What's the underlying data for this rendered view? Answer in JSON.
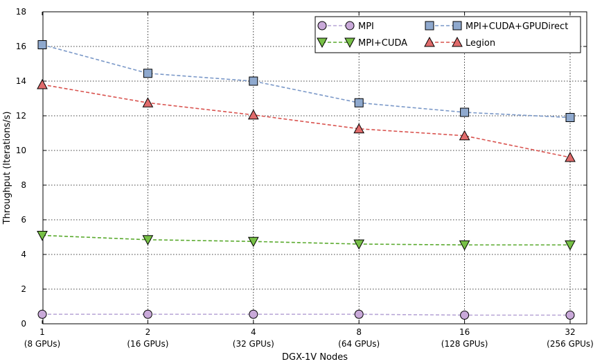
{
  "chart_data": {
    "type": "line",
    "title": "",
    "xlabel": "DGX-1V Nodes",
    "ylabel": "Throughput (Iterations/s)",
    "ylim": [
      0,
      18
    ],
    "yticks": [
      0,
      2,
      4,
      6,
      8,
      10,
      12,
      14,
      16,
      18
    ],
    "grid": true,
    "legend_position": "top-right",
    "categories": [
      {
        "line1": "1",
        "line2": "(8 GPUs)"
      },
      {
        "line1": "2",
        "line2": "(16 GPUs)"
      },
      {
        "line1": "4",
        "line2": "(32 GPUs)"
      },
      {
        "line1": "8",
        "line2": "(64 GPUs)"
      },
      {
        "line1": "16",
        "line2": "(128 GPUs)"
      },
      {
        "line1": "32",
        "line2": "(256 GPUs)"
      }
    ],
    "series": [
      {
        "name": "MPI",
        "marker": "circle",
        "color": "#c9a9d9",
        "line_color": "#b7a5d6",
        "values": [
          0.55,
          0.55,
          0.55,
          0.55,
          0.5,
          0.5
        ]
      },
      {
        "name": "MPI+CUDA",
        "marker": "triangle-down",
        "color": "#77c046",
        "line_color": "#5aaa2e",
        "values": [
          5.1,
          4.85,
          4.75,
          4.6,
          4.55,
          4.55
        ]
      },
      {
        "name": "MPI+CUDA+GPUDirect",
        "marker": "square",
        "color": "#8fa9ce",
        "line_color": "#7a98c8",
        "values": [
          16.1,
          14.45,
          14.0,
          12.75,
          12.2,
          11.9
        ]
      },
      {
        "name": "Legion",
        "marker": "triangle-up",
        "color": "#e06b6b",
        "line_color": "#d9534f",
        "values": [
          13.8,
          12.75,
          12.05,
          11.25,
          10.85,
          9.6
        ]
      }
    ]
  }
}
